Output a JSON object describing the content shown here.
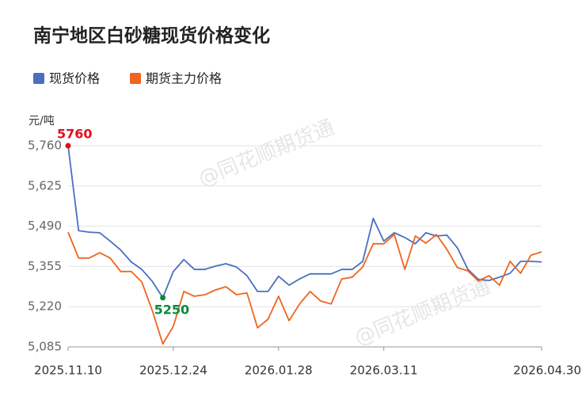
{
  "chart_data": {
    "type": "line",
    "title": "南宁地区白砂糖现货价格变化",
    "y_label": "元/吨",
    "watermark": "@同花顺期货通",
    "legend": "top-left",
    "grid": true,
    "categories": [
      "2025.11.10",
      null,
      null,
      null,
      null,
      null,
      null,
      null,
      null,
      null,
      "2025.12.24",
      null,
      null,
      null,
      null,
      null,
      null,
      null,
      null,
      null,
      "2026.01.28",
      null,
      null,
      null,
      null,
      null,
      null,
      null,
      null,
      null,
      "2026.03.11",
      null,
      null,
      null,
      null,
      null,
      null,
      null,
      null,
      null,
      null,
      null,
      null,
      null,
      null,
      "2026.04.30"
    ],
    "ylim": [
      5085,
      5760
    ],
    "yticks": [
      {
        "value": 5085,
        "label": "5,085"
      },
      {
        "value": 5220,
        "label": "5,220"
      },
      {
        "value": 5355,
        "label": "5,355"
      },
      {
        "value": 5490,
        "label": "5,490"
      },
      {
        "value": 5625,
        "label": "5,625"
      },
      {
        "value": 5760,
        "label": "5,760"
      }
    ],
    "series": [
      {
        "name": "现货价格",
        "color": "#4a6fc1",
        "values": [
          5760,
          5475,
          5470,
          5468,
          5440,
          5410,
          5370,
          5345,
          5305,
          5250,
          5338,
          5378,
          5345,
          5345,
          5356,
          5364,
          5353,
          5324,
          5271,
          5271,
          5322,
          5292,
          5313,
          5330,
          5330,
          5330,
          5345,
          5345,
          5372,
          5516,
          5440,
          5468,
          5452,
          5431,
          5468,
          5457,
          5460,
          5417,
          5345,
          5311,
          5308,
          5319,
          5332,
          5372,
          5372,
          5370
        ]
      },
      {
        "name": "期货主力价格",
        "color": "#f0641e",
        "values": [
          5470,
          5383,
          5383,
          5401,
          5383,
          5338,
          5338,
          5303,
          5207,
          5095,
          5154,
          5271,
          5255,
          5260,
          5276,
          5287,
          5260,
          5266,
          5149,
          5178,
          5255,
          5173,
          5229,
          5271,
          5239,
          5229,
          5313,
          5319,
          5353,
          5431,
          5431,
          5462,
          5345,
          5457,
          5433,
          5462,
          5412,
          5351,
          5340,
          5306,
          5324,
          5292,
          5372,
          5332,
          5393,
          5404
        ]
      }
    ],
    "annotations": [
      {
        "label": "5760",
        "value": 5760,
        "color": "#e0101e"
      },
      {
        "label": "5250",
        "value": 5250,
        "color": "#0a8a3a"
      }
    ]
  }
}
